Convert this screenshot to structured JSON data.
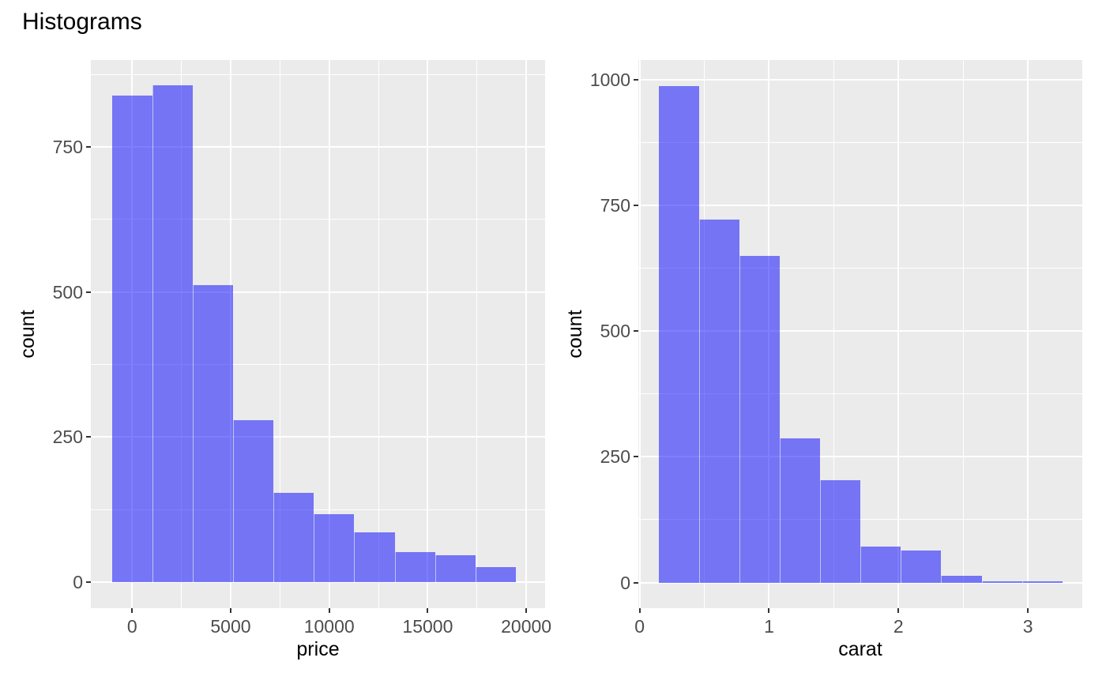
{
  "title": "Histograms",
  "colors": {
    "background": "#FFFFFF",
    "panel_bg": "#EBEBEB",
    "grid_major": "#FFFFFF",
    "grid_minor": "#FFFFFF",
    "bar_fill": "#0000FF",
    "bar_opacity": 0.5,
    "bar_seam": "rgba(255,255,255,0.6)",
    "tick_mark": "#333333",
    "tick_label": "#4D4D4D",
    "axis_title": "#000000",
    "title_color": "#000000"
  },
  "chart_data": [
    {
      "type": "bar",
      "variant": "histogram",
      "title": "",
      "xlabel": "price",
      "ylabel": "count",
      "bin_start": -1014,
      "bin_width": 2048,
      "counts": [
        839,
        856,
        512,
        279,
        154,
        117,
        86,
        52,
        46,
        26
      ],
      "x_ticks": [
        0,
        5000,
        10000,
        15000,
        20000
      ],
      "x_tick_labels": [
        "0",
        "5000",
        "10000",
        "15000",
        "20000"
      ],
      "x_minor_ticks": [
        2500,
        7500,
        12500,
        17500
      ],
      "y_ticks": [
        0,
        250,
        500,
        750
      ],
      "y_tick_labels": [
        "0",
        "250",
        "500",
        "750"
      ],
      "y_minor_ticks": [
        125,
        375,
        625,
        875
      ],
      "xlim": [
        -2096,
        20957
      ],
      "ylim": [
        -45,
        900
      ],
      "grid": true,
      "legend": false
    },
    {
      "type": "bar",
      "variant": "histogram",
      "title": "",
      "xlabel": "carat",
      "ylabel": "count",
      "bin_start": 0.146,
      "bin_width": 0.312,
      "counts": [
        987,
        722,
        650,
        286,
        204,
        71,
        63,
        13,
        2,
        2
      ],
      "x_ticks": [
        0,
        1,
        2,
        3
      ],
      "x_tick_labels": [
        "0",
        "1",
        "2",
        "3"
      ],
      "x_minor_ticks": [
        0.5,
        1.5,
        2.5
      ],
      "y_ticks": [
        0,
        250,
        500,
        750,
        1000
      ],
      "y_tick_labels": [
        "0",
        "250",
        "500",
        "750",
        "1000"
      ],
      "y_minor_ticks": [
        125,
        375,
        625,
        875
      ],
      "xlim": [
        -0.01,
        3.42
      ],
      "ylim": [
        -51,
        1039
      ],
      "grid": true,
      "legend": false
    }
  ]
}
